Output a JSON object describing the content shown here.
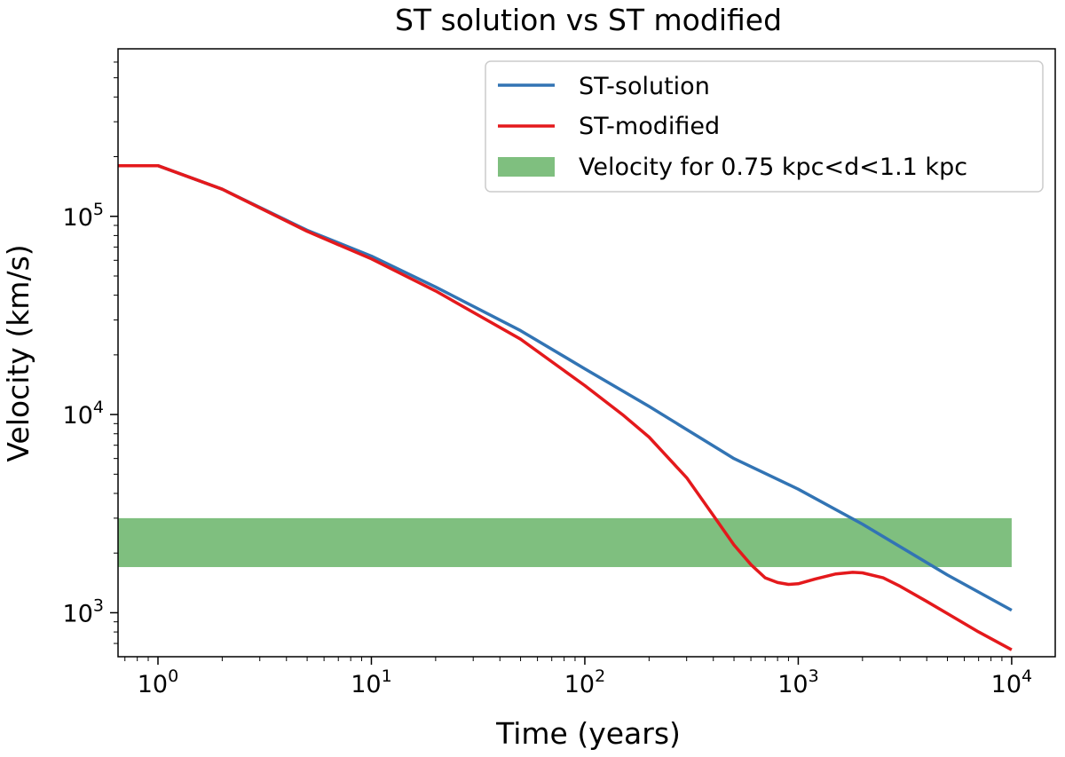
{
  "chart_data": {
    "type": "line",
    "title": "ST solution vs ST modified",
    "xlabel": "Time (years)",
    "ylabel": "Velocity (km/s)",
    "xscale": "log",
    "yscale": "log",
    "xlim": [
      0.65,
      16000
    ],
    "ylim": [
      600,
      700000
    ],
    "grid": false,
    "legend_position": "top-right",
    "x_ticks": [
      {
        "value": 1,
        "base": "10",
        "exp": "0"
      },
      {
        "value": 10,
        "base": "10",
        "exp": "1"
      },
      {
        "value": 100,
        "base": "10",
        "exp": "2"
      },
      {
        "value": 1000,
        "base": "10",
        "exp": "3"
      },
      {
        "value": 10000,
        "base": "10",
        "exp": "4"
      }
    ],
    "y_ticks": [
      {
        "value": 1000,
        "base": "10",
        "exp": "3"
      },
      {
        "value": 10000,
        "base": "10",
        "exp": "4"
      },
      {
        "value": 100000,
        "base": "10",
        "exp": "5"
      }
    ],
    "series": [
      {
        "name": "ST-solution",
        "color": "#3274b4",
        "points": [
          [
            0.65,
            180000
          ],
          [
            1,
            180000
          ],
          [
            2,
            137000
          ],
          [
            5,
            85000
          ],
          [
            10,
            63000
          ],
          [
            20,
            44000
          ],
          [
            50,
            26500
          ],
          [
            100,
            17000
          ],
          [
            200,
            11000
          ],
          [
            500,
            6000
          ],
          [
            1000,
            4200
          ],
          [
            2000,
            2800
          ],
          [
            5000,
            1550
          ],
          [
            10000,
            1030
          ]
        ]
      },
      {
        "name": "ST-modified",
        "color": "#e4191c",
        "points": [
          [
            0.65,
            180000
          ],
          [
            1,
            180000
          ],
          [
            2,
            137000
          ],
          [
            5,
            84000
          ],
          [
            10,
            61000
          ],
          [
            20,
            42000
          ],
          [
            50,
            24000
          ],
          [
            100,
            14000
          ],
          [
            150,
            10000
          ],
          [
            200,
            7700
          ],
          [
            300,
            4800
          ],
          [
            400,
            3100
          ],
          [
            500,
            2200
          ],
          [
            600,
            1750
          ],
          [
            700,
            1500
          ],
          [
            800,
            1420
          ],
          [
            900,
            1390
          ],
          [
            1000,
            1400
          ],
          [
            1200,
            1480
          ],
          [
            1500,
            1570
          ],
          [
            1800,
            1600
          ],
          [
            2000,
            1590
          ],
          [
            2500,
            1500
          ],
          [
            3000,
            1360
          ],
          [
            4000,
            1140
          ],
          [
            5000,
            990
          ],
          [
            7000,
            800
          ],
          [
            10000,
            650
          ]
        ]
      }
    ],
    "band": {
      "name": "Velocity for 0.75 kpc<d<1.1 kpc",
      "color": "#7fbf7f",
      "x_range": [
        0.65,
        10000
      ],
      "y_range": [
        1700,
        3000
      ]
    }
  }
}
